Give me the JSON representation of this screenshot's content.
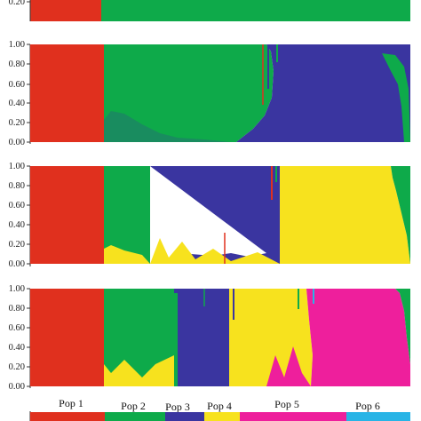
{
  "figure": {
    "pop_labels": [
      "Pop 1",
      "Pop 2",
      "Pop 3",
      "Pop 4",
      "Pop 5",
      "Pop 6"
    ]
  },
  "chart_data": [
    {
      "type": "bar",
      "stacked": true,
      "cluster_colors": [
        "#e0301e",
        "#0eaa4a"
      ],
      "ytick_labels": [
        "0.20"
      ],
      "visible_yticks": [
        0.2
      ],
      "visible_fraction": "bottom edge only (panel cropped at top of image)",
      "individuals_groups": [
        {
          "start": 0.0,
          "end": 0.18,
          "proportions": [
            1.0,
            0.0
          ]
        },
        {
          "start": 0.18,
          "end": 1.0,
          "proportions": [
            0.0,
            1.0
          ]
        }
      ]
    },
    {
      "type": "bar",
      "stacked": true,
      "K": 3,
      "ylim": [
        0,
        1
      ],
      "ytick_labels": [
        "0.00",
        "0.20",
        "0.40",
        "0.60",
        "0.80",
        "1.00"
      ],
      "cluster_colors": [
        "#e0301e",
        "#0eaa4a",
        "#3a35a0"
      ],
      "segments": [
        {
          "cluster": 0,
          "start": 0.0,
          "end": 0.18,
          "value": 1.0
        },
        {
          "cluster": 1,
          "start": 0.18,
          "end": 0.6,
          "value": 0.97
        },
        {
          "cluster": 2,
          "start": 0.6,
          "end": 1.0,
          "value": 0.95
        }
      ]
    },
    {
      "type": "bar",
      "stacked": true,
      "K": 4,
      "ylim": [
        0,
        1
      ],
      "ytick_labels": [
        "0.00",
        "0.20",
        "0.40",
        "0.60",
        "0.80",
        "1.00"
      ],
      "cluster_colors": [
        "#e0301e",
        "#0eaa4a",
        "#3a35a0",
        "#f7e21e"
      ],
      "segments": [
        {
          "cluster": 0,
          "start": 0.0,
          "end": 0.18,
          "value": 1.0
        },
        {
          "cluster": 1,
          "start": 0.18,
          "end": 0.3,
          "value": 0.9
        },
        {
          "cluster": 2,
          "start": 0.3,
          "end": 0.65,
          "value": 0.85
        },
        {
          "cluster": 3,
          "start": 0.65,
          "end": 1.0,
          "value": 0.9
        }
      ]
    },
    {
      "type": "bar",
      "stacked": true,
      "K": 6,
      "ylim": [
        0,
        1
      ],
      "ytick_labels": [
        "0.00",
        "0.20",
        "0.40",
        "0.60",
        "0.80",
        "1.00"
      ],
      "cluster_colors": [
        "#e0301e",
        "#0eaa4a",
        "#3a35a0",
        "#f7e21e",
        "#ee1f9c",
        "#28b4e6"
      ],
      "segments": [
        {
          "cluster": 0,
          "start": 0.0,
          "end": 0.18,
          "value": 1.0
        },
        {
          "cluster": 1,
          "start": 0.18,
          "end": 0.36,
          "value": 0.95
        },
        {
          "cluster": 2,
          "start": 0.36,
          "end": 0.5,
          "value": 0.95
        },
        {
          "cluster": 3,
          "start": 0.5,
          "end": 0.7,
          "value": 0.9
        },
        {
          "cluster": 4,
          "start": 0.7,
          "end": 1.0,
          "value": 0.9
        }
      ]
    },
    {
      "type": "bar",
      "stacked": true,
      "visible_fraction": "top edge only (panel cropped at bottom of image)",
      "cluster_colors": [
        "#e0301e",
        "#0eaa4a",
        "#3a35a0",
        "#f7e21e",
        "#ee1f9c",
        "#28b4e6"
      ]
    }
  ]
}
